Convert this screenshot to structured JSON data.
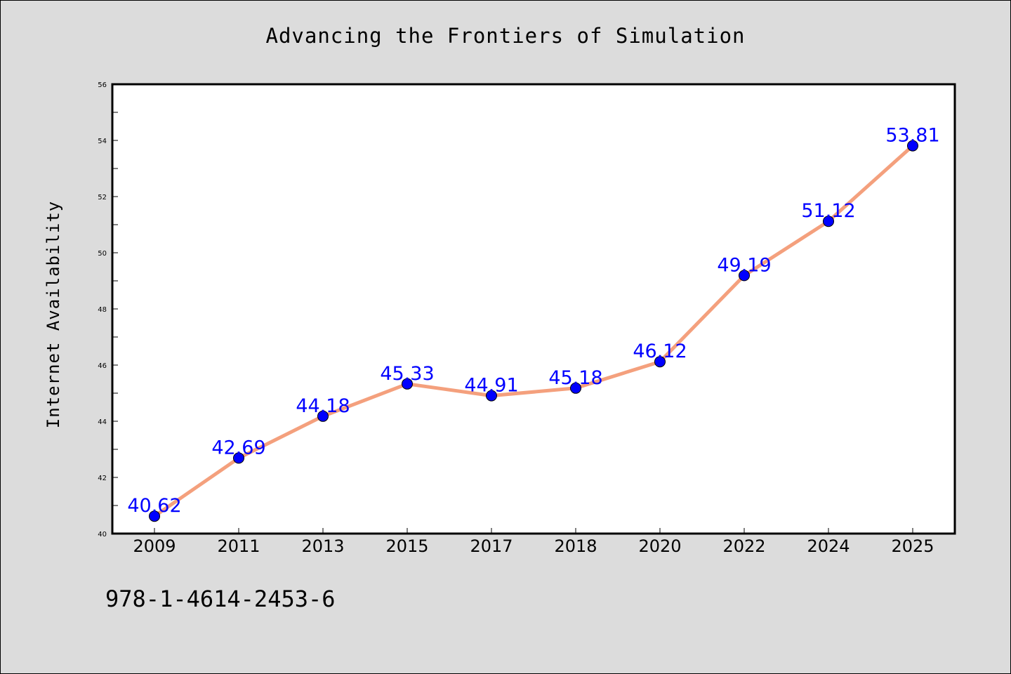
{
  "chart_data": {
    "type": "line",
    "title": "Advancing the Frontiers of Simulation",
    "xlabel": "",
    "ylabel": "Internet Availability",
    "categories": [
      "2009",
      "2011",
      "2013",
      "2015",
      "2017",
      "2018",
      "2020",
      "2022",
      "2024",
      "2025"
    ],
    "series": [
      {
        "values": [
          40.62,
          42.69,
          44.18,
          45.33,
          44.91,
          45.18,
          46.12,
          49.19,
          51.12,
          53.81
        ],
        "line_color": "#f4a07d",
        "marker_color": "#0000ff"
      }
    ],
    "data_labels": [
      "40.62",
      "42.69",
      "44.18",
      "45.33",
      "44.91",
      "45.18",
      "46.12",
      "49.19",
      "51.12",
      "53.81"
    ],
    "ylim": [
      40,
      56
    ],
    "yticks": [
      "40",
      "42",
      "44",
      "46",
      "48",
      "50",
      "52",
      "54",
      "56"
    ],
    "grid": false,
    "legend": "none"
  },
  "footnote": "978-1-4614-2453-6",
  "colors": {
    "background": "#dcdcdc",
    "plot_background": "#ffffff",
    "label_color": "#0000ff"
  }
}
